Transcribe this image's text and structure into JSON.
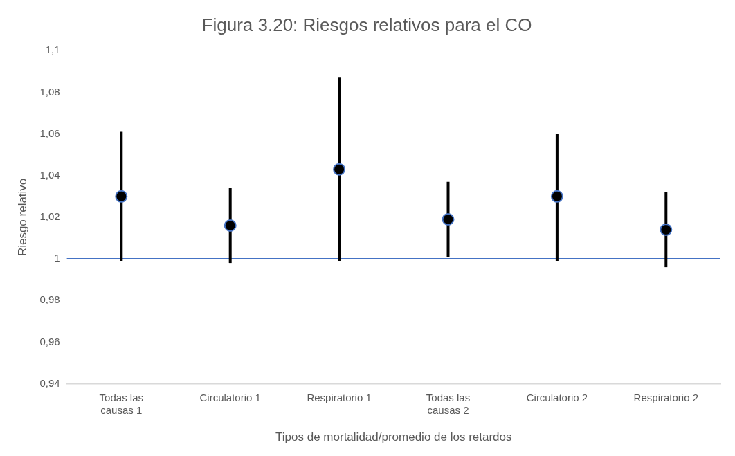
{
  "chart_data": {
    "type": "scatter",
    "title": "Figura 3.20: Riesgos relativos para el CO",
    "xlabel": "Tipos de mortalidad/promedio de los retardos",
    "ylabel": "Riesgo relativo",
    "categories": [
      "Todas las causas 1",
      "Circulatorio 1",
      "Respiratorio 1",
      "Todas las causas 2",
      "Circulatorio 2",
      "Respiratorio 2"
    ],
    "series": [
      {
        "color": "#000000",
        "values": [
          1.03,
          1.016,
          1.043,
          1.019,
          1.03,
          1.014
        ],
        "errors": [
          [
            0.999,
            1.061
          ],
          [
            0.998,
            1.034
          ],
          [
            0.999,
            1.087
          ],
          [
            1.001,
            1.037
          ],
          [
            0.999,
            1.06
          ],
          [
            0.996,
            1.032
          ]
        ]
      }
    ],
    "ref_lines": [
      {
        "axis": "y",
        "value": 1,
        "color": "#4472c4"
      }
    ],
    "ylim": [
      0.94,
      1.1
    ],
    "yticks": [
      {
        "value": 0.94,
        "label": "0,94"
      },
      {
        "value": 0.96,
        "label": "0,96"
      },
      {
        "value": 0.98,
        "label": "0,98"
      },
      {
        "value": 1,
        "label": "1"
      },
      {
        "value": 1.02,
        "label": "1,02"
      },
      {
        "value": 1.04,
        "label": "1,04"
      },
      {
        "value": 1.06,
        "label": "1,06"
      },
      {
        "value": 1.08,
        "label": "1,08"
      },
      {
        "value": 1.1,
        "label": "1,1"
      }
    ],
    "marker": "circle",
    "grid": false,
    "legend": false
  }
}
